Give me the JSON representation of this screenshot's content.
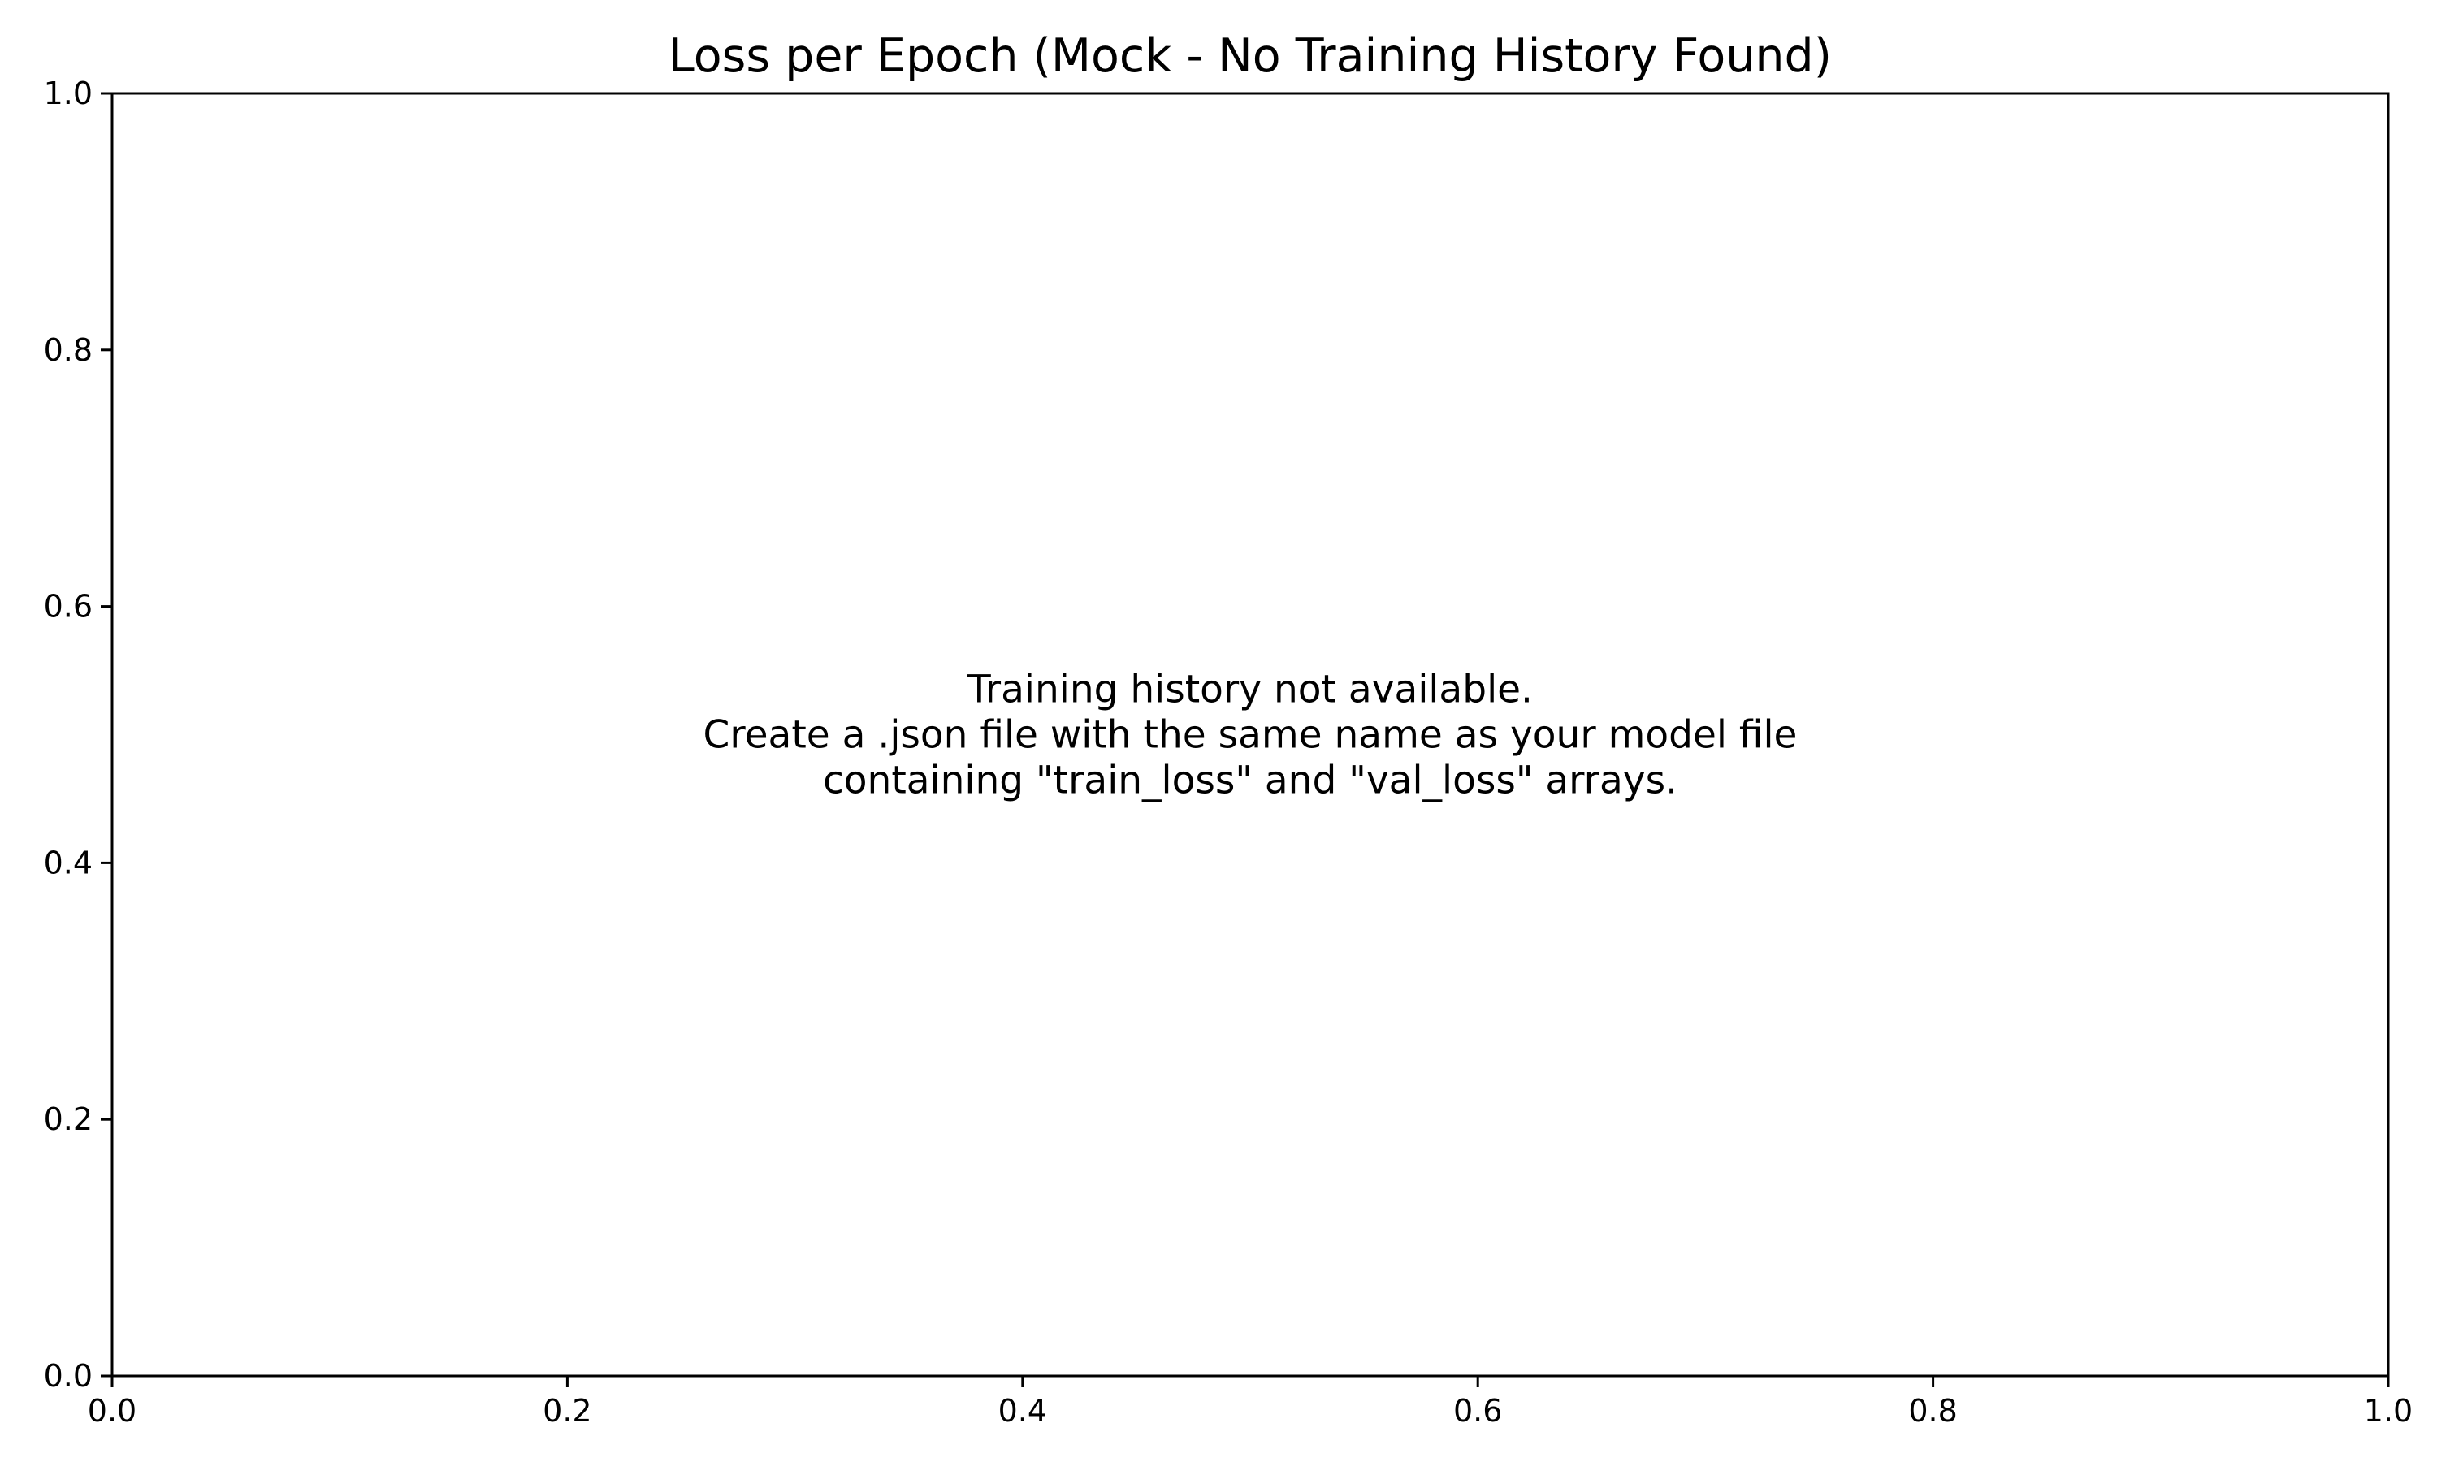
{
  "chart_data": {
    "type": "line",
    "title": "Loss per Epoch (Mock - No Training History Found)",
    "xlabel": "",
    "ylabel": "",
    "xlim": [
      0.0,
      1.0
    ],
    "ylim": [
      0.0,
      1.0
    ],
    "xticks": [
      0.0,
      0.2,
      0.4,
      0.6,
      0.8,
      1.0
    ],
    "yticks": [
      0.0,
      0.2,
      0.4,
      0.6,
      0.8,
      1.0
    ],
    "xtick_labels": [
      "0.0",
      "0.2",
      "0.4",
      "0.6",
      "0.8",
      "1.0"
    ],
    "ytick_labels": [
      "0.0",
      "0.2",
      "0.4",
      "0.6",
      "0.8",
      "1.0"
    ],
    "grid": false,
    "series": [],
    "annotation": {
      "x": 0.5,
      "y": 0.5,
      "lines": [
        "Training history not available.",
        "Create a .json file with the same name as your model file",
        "containing \"train_loss\" and \"val_loss\" arrays."
      ]
    }
  },
  "colors": {
    "background": "#ffffff",
    "axes": "#000000",
    "text": "#000000"
  }
}
